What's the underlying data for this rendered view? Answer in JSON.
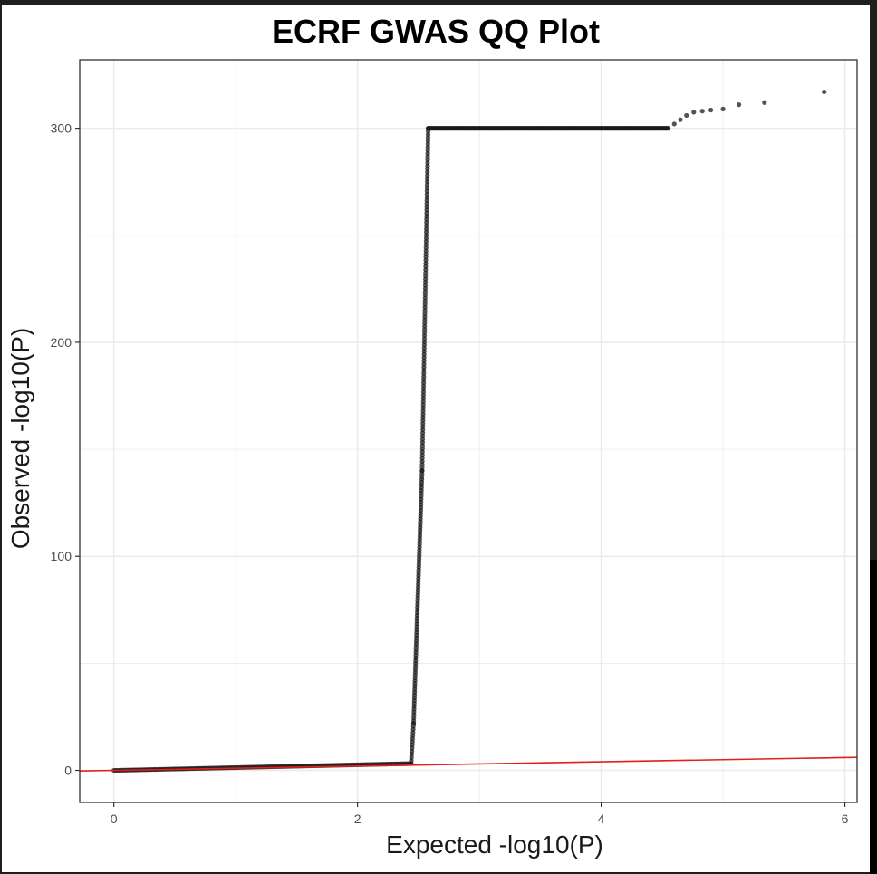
{
  "chart_data": {
    "type": "scatter",
    "title": "ECRF GWAS QQ Plot",
    "xlabel": "Expected -log10(P)",
    "ylabel": "Observed -log10(P)",
    "xlim": [
      -0.28,
      6.1
    ],
    "ylim": [
      -15,
      332
    ],
    "x_ticks": [
      0,
      2,
      4,
      6
    ],
    "y_ticks": [
      0,
      100,
      200,
      300
    ],
    "grid": true,
    "legend": "none",
    "colors": {
      "points": "#1a1a1a",
      "reference_line": "#e0201b",
      "grid": "#ebebeb",
      "border": "#333333"
    },
    "reference_line": {
      "slope": 1,
      "intercept": 0,
      "from": [
        -0.28,
        -0.28
      ],
      "to": [
        6.1,
        6.1
      ]
    },
    "segments": [
      {
        "name": "",
        "x_start": 0.0,
        "x_end": 2.44,
        "y_start": 0.0,
        "y_end": 3.2,
        "n": 170
      },
      {
        "name": "",
        "x_start": 2.44,
        "x_end": 2.46,
        "y_start": 3.2,
        "y_end": 22,
        "n": 14
      },
      {
        "name": "",
        "x_start": 2.46,
        "x_end": 2.53,
        "y_start": 22,
        "y_end": 140,
        "n": 90
      },
      {
        "name": "",
        "x_start": 2.53,
        "x_end": 2.58,
        "y_start": 140,
        "y_end": 300,
        "n": 110
      },
      {
        "name": "",
        "x_start": 2.58,
        "x_end": 4.55,
        "y_start": 300,
        "y_end": 300,
        "n": 210
      }
    ],
    "points": [
      [
        4.6,
        302
      ],
      [
        4.65,
        304
      ],
      [
        4.7,
        306
      ],
      [
        4.76,
        307.5
      ],
      [
        4.83,
        308
      ],
      [
        4.9,
        308.5
      ],
      [
        5.0,
        309
      ],
      [
        5.13,
        311
      ],
      [
        5.34,
        312
      ],
      [
        5.83,
        317
      ]
    ]
  }
}
